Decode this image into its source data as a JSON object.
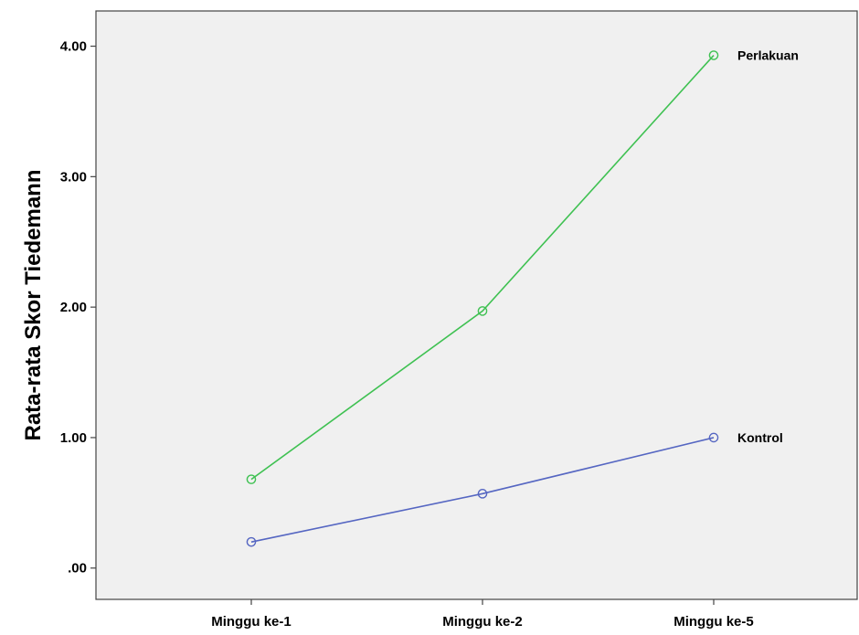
{
  "chart_data": {
    "type": "line",
    "title": "",
    "xlabel": "",
    "ylabel": "Rata-rata Skor Tiedemann",
    "categories": [
      "Minggu ke-1",
      "Minggu ke-2",
      "Minggu ke-5"
    ],
    "ylim": [
      -0.24,
      4.27
    ],
    "yticks": [
      0,
      1,
      2,
      3,
      4
    ],
    "ytick_labels": [
      ".00",
      "1.00",
      "2.00",
      "3.00",
      "4.00"
    ],
    "grid": false,
    "legend": "labels at line ends",
    "plot_background": "#f0f0f0",
    "series": [
      {
        "name": "Perlakuan",
        "color": "#3fc152",
        "values": [
          0.68,
          1.97,
          3.93
        ]
      },
      {
        "name": "Kontrol",
        "color": "#5566c2",
        "values": [
          0.2,
          0.57,
          1.0
        ]
      }
    ]
  }
}
